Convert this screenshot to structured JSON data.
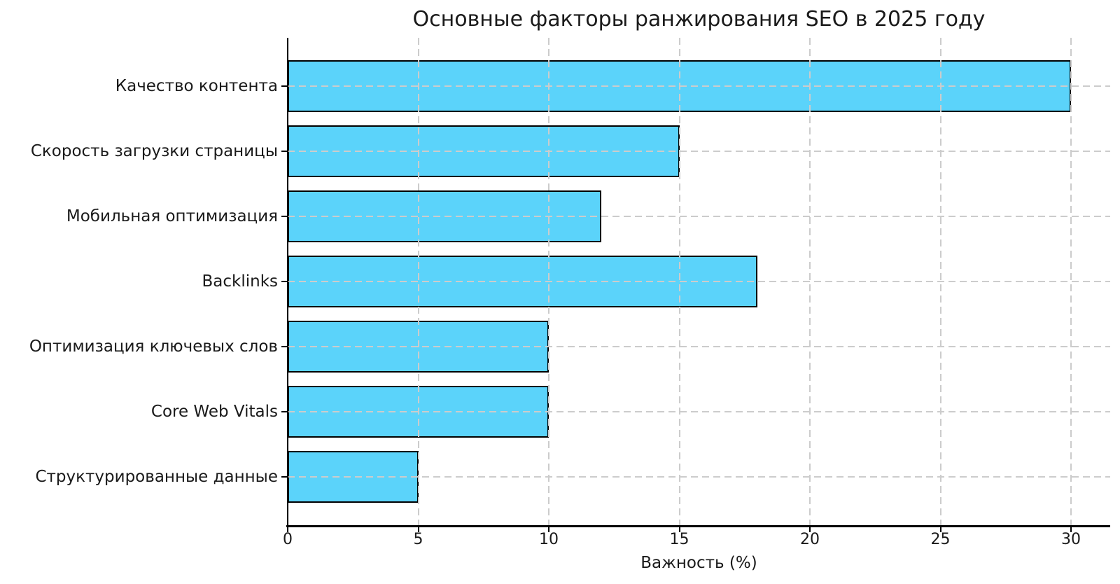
{
  "chart_data": {
    "type": "bar",
    "orientation": "horizontal",
    "title": "Основные факторы ранжирования SEO в 2025 году",
    "xlabel": "Важность (%)",
    "ylabel": "",
    "categories": [
      "Качество контента",
      "Скорость загрузки страницы",
      "Мобильная оптимизация",
      "Backlinks",
      "Оптимизация ключевых слов",
      "Core Web Vitals",
      "Структурированные данные"
    ],
    "values": [
      30,
      15,
      12,
      18,
      10,
      10,
      5
    ],
    "x_ticks": [
      0,
      5,
      10,
      15,
      20,
      25,
      30
    ],
    "xlim": [
      0,
      31.5
    ],
    "grid": true,
    "grid_style": "dashed",
    "legend": false,
    "colors": {
      "bar_fill": "#5BD3FA",
      "bar_edge": "#000000",
      "grid": "#CCCCCC",
      "axis": "#000000",
      "text": "#1A1A1A",
      "background": "#FFFFFF"
    }
  }
}
